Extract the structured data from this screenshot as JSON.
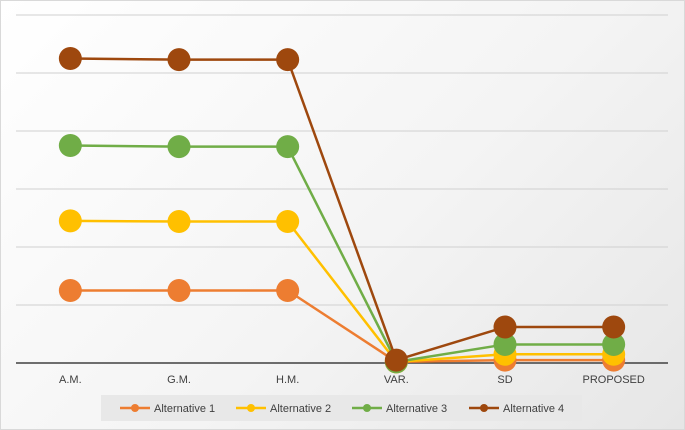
{
  "chart_data": {
    "type": "line",
    "categories": [
      "A.M.",
      "G.M.",
      "H.M.",
      "VAR.",
      "SD",
      "PROPOSED"
    ],
    "series": [
      {
        "name": "Alternative 1",
        "color": "#ED7D31",
        "values": [
          1.25,
          1.25,
          1.25,
          0.02,
          0.05,
          0.05
        ]
      },
      {
        "name": "Alternative 2",
        "color": "#FFC000",
        "values": [
          2.45,
          2.44,
          2.44,
          0.02,
          0.15,
          0.15
        ]
      },
      {
        "name": "Alternative 3",
        "color": "#70AD47",
        "values": [
          3.75,
          3.73,
          3.73,
          0.02,
          0.32,
          0.32
        ]
      },
      {
        "name": "Alternative 4",
        "color": "#9E480E",
        "values": [
          5.25,
          5.23,
          5.23,
          0.05,
          0.62,
          0.62
        ]
      }
    ],
    "ylim": [
      0,
      6
    ],
    "grid": true,
    "legend_position": "bottom"
  }
}
